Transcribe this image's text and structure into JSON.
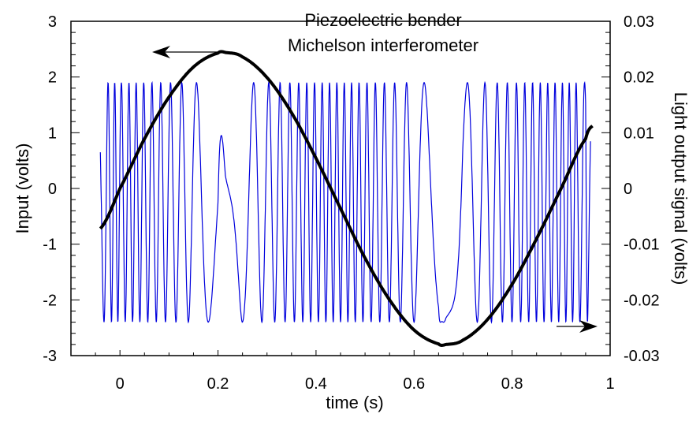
{
  "chart_data": {
    "type": "line",
    "title_lines": [
      "Piezoelectric bender",
      "Michelson interferometer"
    ],
    "xlabel": "time (s)",
    "ylabel_left": "Input (volts)",
    "ylabel_right": "Light output signal (volts)",
    "xlim": [
      -0.1,
      1.0
    ],
    "ylim_left": [
      -3,
      3
    ],
    "ylim_right": [
      -0.03,
      0.03
    ],
    "x_ticks": [
      "0",
      "0.2",
      "0.4",
      "0.6",
      "0.8",
      "1"
    ],
    "y_left_ticks": [
      "3",
      "2",
      "1",
      "0",
      "-1",
      "-2",
      "-3"
    ],
    "y_right_ticks": [
      "0.03",
      "0.02",
      "0.01",
      "0",
      "-0.01",
      "-0.02",
      "-0.03"
    ],
    "grid": false,
    "series": [
      {
        "axis": "left",
        "color": "#000000",
        "x": [
          -0.04,
          0.0,
          0.05,
          0.1,
          0.15,
          0.2,
          0.215,
          0.25,
          0.3,
          0.35,
          0.4,
          0.45,
          0.5,
          0.55,
          0.6,
          0.65,
          0.665,
          0.7,
          0.75,
          0.8,
          0.85,
          0.9,
          0.95,
          0.965
        ],
        "y": [
          -0.72,
          0.0,
          0.89,
          1.64,
          2.18,
          2.43,
          2.44,
          2.36,
          1.99,
          1.36,
          0.54,
          -0.36,
          -1.25,
          -2.0,
          -2.54,
          -2.79,
          -2.8,
          -2.72,
          -2.35,
          -1.72,
          -0.9,
          0.0,
          0.89,
          1.13
        ]
      },
      {
        "axis": "right",
        "color": "#0000dd",
        "x_range": [
          -0.04,
          0.96
        ],
        "y_range": [
          -0.024,
          0.019
        ],
        "start_value": 0.0065
      }
    ],
    "annotations": [
      {
        "type": "arrow",
        "direction": "left",
        "points_to": "left axis"
      },
      {
        "type": "arrow",
        "direction": "right",
        "points_to": "right axis"
      }
    ]
  }
}
